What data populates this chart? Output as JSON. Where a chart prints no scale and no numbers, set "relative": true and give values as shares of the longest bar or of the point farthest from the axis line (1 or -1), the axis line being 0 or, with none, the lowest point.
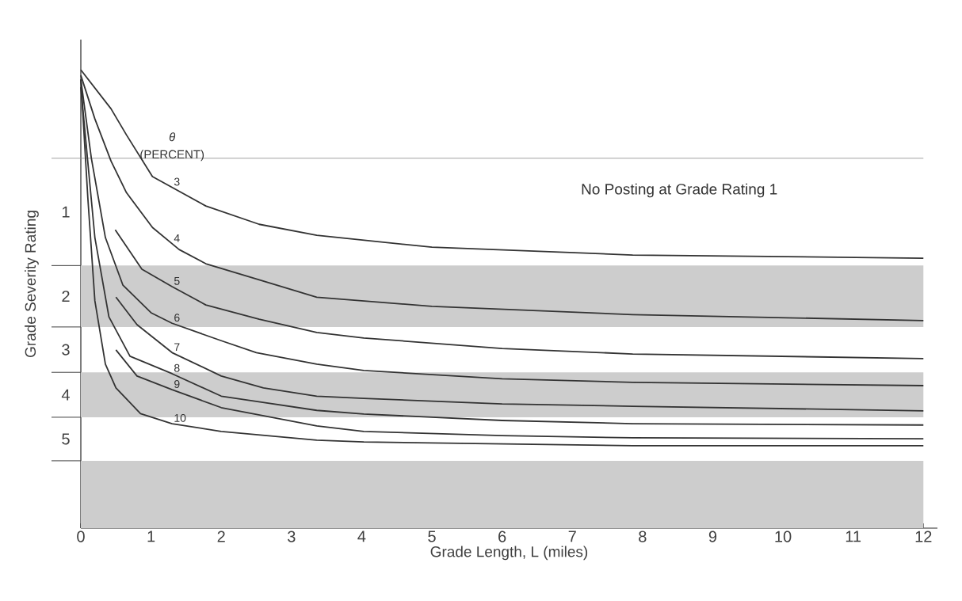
{
  "chart_data": {
    "type": "line",
    "relative": true,
    "xlabel": "Grade Length, L (miles)",
    "ylabel": "Grade Severity Rating",
    "legend_title": "*θ* (PERCENT)",
    "xlim": [
      0,
      12.2
    ],
    "xticks": [
      0,
      1,
      2,
      3,
      4,
      5,
      6,
      7,
      8,
      9,
      10,
      11,
      12
    ],
    "series": [
      {
        "name": "3",
        "color": "#333333",
        "x": [
          0,
          0.43,
          0.65,
          1.02,
          1.78,
          2.54,
          3.36,
          5,
          7.86,
          12
        ],
        "values": [
          1.0,
          0.915,
          0.858,
          0.767,
          0.703,
          0.663,
          0.639,
          0.613,
          0.596,
          0.589
        ]
      },
      {
        "name": "4",
        "color": "#333333",
        "x": [
          0,
          0.2,
          0.43,
          0.65,
          1.02,
          1.4,
          1.78,
          2.54,
          3.36,
          5,
          7.86,
          12
        ],
        "values": [
          0.988,
          0.893,
          0.801,
          0.732,
          0.656,
          0.608,
          0.577,
          0.542,
          0.504,
          0.484,
          0.466,
          0.453
        ]
      },
      {
        "name": "5",
        "color": "#333333",
        "x": [
          0.49,
          0.87,
          1.3,
          1.78,
          2.54,
          3.36,
          4.03,
          6,
          7.86,
          12
        ],
        "values": [
          0.651,
          0.565,
          0.527,
          0.487,
          0.456,
          0.427,
          0.415,
          0.392,
          0.38,
          0.37
        ]
      },
      {
        "name": "6",
        "color": "#333333",
        "x": [
          0,
          0.15,
          0.35,
          0.6,
          1.0,
          1.3,
          2,
          2.5,
          3.36,
          4.03,
          6,
          7.86,
          12
        ],
        "values": [
          0.979,
          0.807,
          0.634,
          0.53,
          0.47,
          0.447,
          0.409,
          0.383,
          0.358,
          0.344,
          0.326,
          0.318,
          0.311
        ]
      },
      {
        "name": "7",
        "color": "#333333",
        "x": [
          0.5,
          0.8,
          1.3,
          2,
          2.6,
          3.36,
          4.03,
          6,
          7.86,
          12
        ],
        "values": [
          0.504,
          0.444,
          0.383,
          0.332,
          0.306,
          0.288,
          0.283,
          0.271,
          0.266,
          0.256
        ]
      },
      {
        "name": "8",
        "color": "#333333",
        "x": [
          0,
          0.2,
          0.4,
          0.7,
          1.3,
          2,
          3.36,
          4.03,
          6,
          7.86,
          12
        ],
        "values": [
          0.962,
          0.634,
          0.461,
          0.375,
          0.337,
          0.288,
          0.257,
          0.249,
          0.235,
          0.228,
          0.225
        ]
      },
      {
        "name": "9",
        "color": "#333333",
        "x": [
          0.5,
          0.8,
          1.3,
          2,
          3.36,
          4.03,
          6,
          7.86,
          12
        ],
        "values": [
          0.389,
          0.332,
          0.302,
          0.263,
          0.223,
          0.211,
          0.202,
          0.197,
          0.195
        ]
      },
      {
        "name": "10",
        "color": "#333333",
        "x": [
          0,
          0.1,
          0.2,
          0.35,
          0.5,
          0.85,
          1.3,
          2,
          3.36,
          4.03,
          7.86,
          12
        ],
        "values": [
          0.979,
          0.72,
          0.496,
          0.358,
          0.306,
          0.25,
          0.228,
          0.211,
          0.192,
          0.188,
          0.18,
          0.18
        ]
      }
    ],
    "bands": [
      {
        "axis": "y",
        "from": 0.439,
        "to": 0.573,
        "color": "#cdcdcd"
      },
      {
        "axis": "y",
        "from": 0.242,
        "to": 0.34,
        "color": "#cdcdcd"
      },
      {
        "axis": "y",
        "from": 0,
        "to": 0.147,
        "color": "#cdcdcd"
      }
    ],
    "annotations": [
      "1",
      "2",
      "3",
      "4",
      "5"
    ],
    "ref_lines": [
      {
        "axis": "y",
        "value": 0.807,
        "label": "No Posting at Grade Rating 1",
        "color": "#8a8a8a"
      }
    ]
  }
}
